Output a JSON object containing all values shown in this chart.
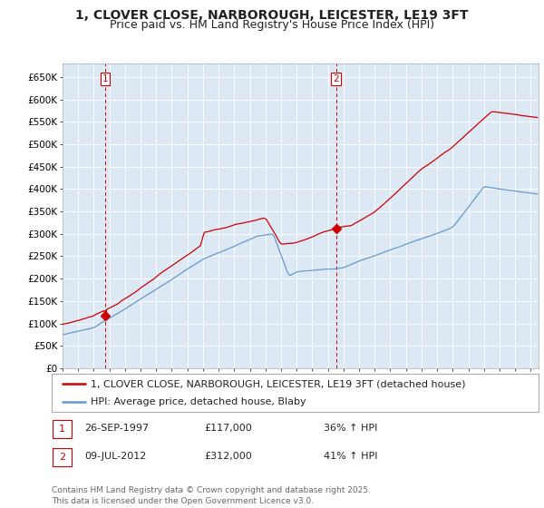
{
  "title": "1, CLOVER CLOSE, NARBOROUGH, LEICESTER, LE19 3FT",
  "subtitle": "Price paid vs. HM Land Registry's House Price Index (HPI)",
  "ylim": [
    0,
    680000
  ],
  "yticks": [
    0,
    50000,
    100000,
    150000,
    200000,
    250000,
    300000,
    350000,
    400000,
    450000,
    500000,
    550000,
    600000,
    650000
  ],
  "ytick_labels": [
    "£0",
    "£50K",
    "£100K",
    "£150K",
    "£200K",
    "£250K",
    "£300K",
    "£350K",
    "£400K",
    "£450K",
    "£500K",
    "£550K",
    "£600K",
    "£650K"
  ],
  "xlim_start": 1995.0,
  "xlim_end": 2025.5,
  "sale1_x": 1997.73,
  "sale1_y": 117000,
  "sale2_x": 2012.52,
  "sale2_y": 312000,
  "red_line_color": "#cc0000",
  "blue_line_color": "#6699cc",
  "chart_bg_color": "#dce9f5",
  "grid_color": "#ffffff",
  "background_color": "#ffffff",
  "legend_label_red": "1, CLOVER CLOSE, NARBOROUGH, LEICESTER, LE19 3FT (detached house)",
  "legend_label_blue": "HPI: Average price, detached house, Blaby",
  "table_row1": [
    "1",
    "26-SEP-1997",
    "£117,000",
    "36% ↑ HPI"
  ],
  "table_row2": [
    "2",
    "09-JUL-2012",
    "£312,000",
    "41% ↑ HPI"
  ],
  "footer": "Contains HM Land Registry data © Crown copyright and database right 2025.\nThis data is licensed under the Open Government Licence v3.0.",
  "title_fontsize": 10,
  "subtitle_fontsize": 9,
  "tick_fontsize": 7.5,
  "legend_fontsize": 8,
  "table_fontsize": 8,
  "footer_fontsize": 6.5
}
